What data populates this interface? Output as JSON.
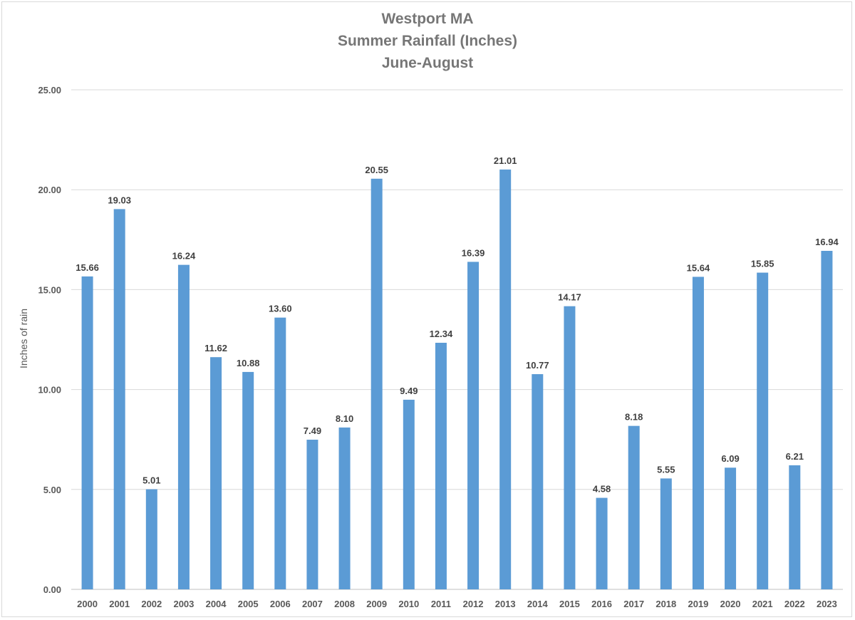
{
  "chart_data": {
    "type": "bar",
    "title_lines": [
      "Westport MA",
      "Summer Rainfall (Inches)",
      "June-August"
    ],
    "ylabel": "Inches of rain",
    "xlabel": "",
    "ylim": [
      0,
      25
    ],
    "y_ticks": [
      "0.00",
      "5.00",
      "10.00",
      "15.00",
      "20.00",
      "25.00"
    ],
    "grid": true,
    "legend": "none",
    "bar_color": "#5b9bd5",
    "categories": [
      "2000",
      "2001",
      "2002",
      "2003",
      "2004",
      "2005",
      "2006",
      "2007",
      "2008",
      "2009",
      "2010",
      "2011",
      "2012",
      "2013",
      "2014",
      "2015",
      "2016",
      "2017",
      "2018",
      "2019",
      "2020",
      "2021",
      "2022",
      "2023"
    ],
    "values": [
      15.66,
      19.03,
      5.01,
      16.24,
      11.62,
      10.88,
      13.6,
      7.49,
      8.1,
      20.55,
      9.49,
      12.34,
      16.39,
      21.01,
      10.77,
      14.17,
      4.58,
      8.18,
      5.55,
      15.64,
      6.09,
      15.85,
      6.21,
      16.94
    ],
    "data_labels": [
      "15.66",
      "19.03",
      "5.01",
      "16.24",
      "11.62",
      "10.88",
      "13.60",
      "7.49",
      "8.10",
      "20.55",
      "9.49",
      "12.34",
      "16.39",
      "21.01",
      "10.77",
      "14.17",
      "4.58",
      "8.18",
      "5.55",
      "15.64",
      "6.09",
      "15.85",
      "6.21",
      "16.94"
    ]
  }
}
